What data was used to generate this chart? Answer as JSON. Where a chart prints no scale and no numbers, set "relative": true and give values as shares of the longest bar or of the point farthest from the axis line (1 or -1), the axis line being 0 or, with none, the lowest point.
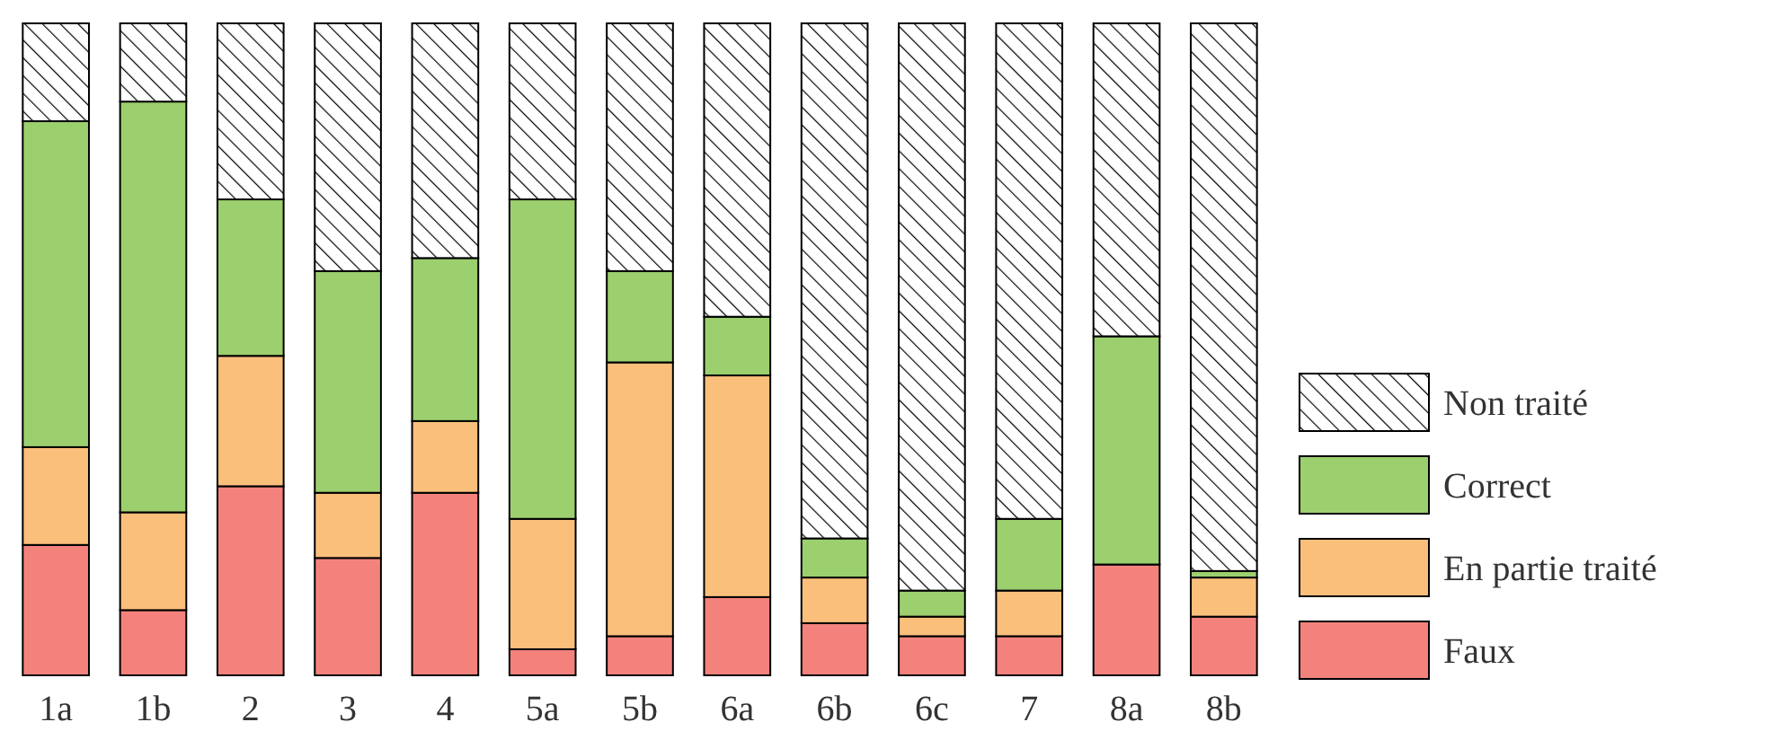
{
  "chart_data": {
    "type": "bar",
    "stacked": true,
    "relative": true,
    "legend": "right",
    "categories": [
      "1a",
      "1b",
      "2",
      "3",
      "4",
      "5a",
      "5b",
      "6a",
      "6b",
      "6c",
      "7",
      "8a",
      "8b"
    ],
    "series": [
      {
        "name": "Faux",
        "color": "#f4827c",
        "values": [
          0.2,
          0.1,
          0.29,
          0.18,
          0.28,
          0.04,
          0.06,
          0.12,
          0.08,
          0.06,
          0.06,
          0.17,
          0.09
        ]
      },
      {
        "name": "En partie traité",
        "color": "#fbbf7c",
        "values": [
          0.15,
          0.15,
          0.2,
          0.1,
          0.11,
          0.2,
          0.42,
          0.34,
          0.07,
          0.03,
          0.07,
          0,
          0.06
        ]
      },
      {
        "name": "Correct",
        "color": "#9ccf6e",
        "values": [
          0.5,
          0.63,
          0.24,
          0.34,
          0.25,
          0.49,
          0.14,
          0.09,
          0.06,
          0.04,
          0.11,
          0.35,
          0.01
        ]
      },
      {
        "name": "Non traité",
        "values": [
          0.15,
          0.12,
          0.27,
          0.38,
          0.36,
          0.27,
          0.38,
          0.45,
          0.79,
          0.87,
          0.76,
          0.48,
          0.84
        ]
      }
    ]
  }
}
